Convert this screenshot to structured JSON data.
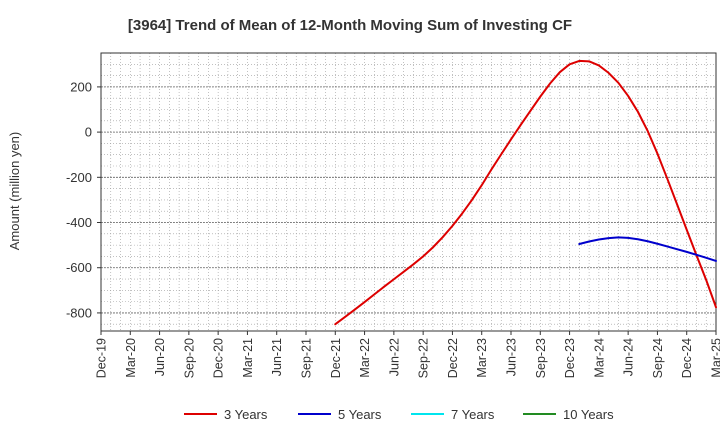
{
  "chart_data": {
    "type": "line",
    "title": "[3964]  Trend of Mean of 12-Month Moving Sum of Investing CF",
    "xlabel": "",
    "ylabel": "Amount (million yen)",
    "ylim": [
      -880,
      350
    ],
    "yticks": [
      200,
      0,
      -200,
      -400,
      -600,
      -800
    ],
    "xticks": [
      "Dec-19",
      "Mar-20",
      "Jun-20",
      "Sep-20",
      "Dec-20",
      "Mar-21",
      "Jun-21",
      "Sep-21",
      "Dec-21",
      "Mar-22",
      "Jun-22",
      "Sep-22",
      "Dec-22",
      "Mar-23",
      "Jun-23",
      "Sep-23",
      "Dec-23",
      "Mar-24",
      "Jun-24",
      "Sep-24",
      "Dec-24",
      "Mar-25"
    ],
    "grid": true,
    "legend_position": "bottom",
    "series": [
      {
        "name": "3 Years",
        "color": "#dd0000",
        "points": [
          [
            "Dec-21",
            -850
          ],
          [
            "Jan-22",
            -818
          ],
          [
            "Feb-22",
            -785
          ],
          [
            "Mar-22",
            -752
          ],
          [
            "Apr-22",
            -718
          ],
          [
            "May-22",
            -684
          ],
          [
            "Jun-22",
            -651
          ],
          [
            "Jul-22",
            -618
          ],
          [
            "Aug-22",
            -585
          ],
          [
            "Sep-22",
            -550
          ],
          [
            "Oct-22",
            -510
          ],
          [
            "Nov-22",
            -465
          ],
          [
            "Dec-22",
            -415
          ],
          [
            "Jan-23",
            -360
          ],
          [
            "Feb-23",
            -300
          ],
          [
            "Mar-23",
            -235
          ],
          [
            "Apr-23",
            -165
          ],
          [
            "May-23",
            -98
          ],
          [
            "Jun-23",
            -32
          ],
          [
            "Jul-23",
            32
          ],
          [
            "Aug-23",
            95
          ],
          [
            "Sep-23",
            157
          ],
          [
            "Oct-23",
            215
          ],
          [
            "Nov-23",
            265
          ],
          [
            "Dec-23",
            300
          ],
          [
            "Jan-24",
            315
          ],
          [
            "Feb-24",
            313
          ],
          [
            "Mar-24",
            295
          ],
          [
            "Apr-24",
            262
          ],
          [
            "May-24",
            218
          ],
          [
            "Jun-24",
            160
          ],
          [
            "Jul-24",
            90
          ],
          [
            "Aug-24",
            5
          ],
          [
            "Sep-24",
            -95
          ],
          [
            "Oct-24",
            -205
          ],
          [
            "Nov-24",
            -318
          ],
          [
            "Dec-24",
            -432
          ],
          [
            "Jan-25",
            -545
          ],
          [
            "Feb-25",
            -655
          ],
          [
            "Mar-25",
            -775
          ]
        ]
      },
      {
        "name": "5 Years",
        "color": "#0000cc",
        "points": [
          [
            "Jan-24",
            -495
          ],
          [
            "Feb-24",
            -484
          ],
          [
            "Mar-24",
            -475
          ],
          [
            "Apr-24",
            -469
          ],
          [
            "May-24",
            -466
          ],
          [
            "Jun-24",
            -468
          ],
          [
            "Jul-24",
            -474
          ],
          [
            "Aug-24",
            -483
          ],
          [
            "Sep-24",
            -494
          ],
          [
            "Oct-24",
            -506
          ],
          [
            "Nov-24",
            -518
          ],
          [
            "Dec-24",
            -530
          ],
          [
            "Jan-25",
            -543
          ],
          [
            "Feb-25",
            -556
          ],
          [
            "Mar-25",
            -570
          ]
        ]
      },
      {
        "name": "7 Years",
        "color": "#00e5ee",
        "points": []
      },
      {
        "name": "10 Years",
        "color": "#228b22",
        "points": []
      }
    ]
  }
}
